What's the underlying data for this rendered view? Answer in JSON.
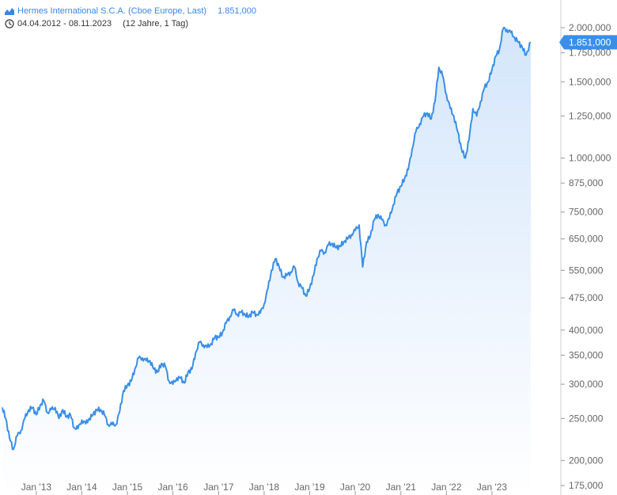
{
  "legend": {
    "instrument": "Hermes International S.C.A. (Cboe Europe, Last)",
    "last_value": "1.851,000",
    "date_range": "04.04.2012 - 08.11.2023",
    "period": "(12 Jahre, 1 Tag)",
    "icon": "area-chart-icon",
    "period_icon": "clock-icon"
  },
  "colors": {
    "line": "#3a8ee8",
    "area_top": "#d6e8fb",
    "price_tag": "#3a8ee8",
    "axis": "#cccccc",
    "label": "#666666"
  },
  "chart_data": {
    "type": "area",
    "title": "",
    "xlabel": "",
    "ylabel": "",
    "y_scale": "log",
    "ylim": [
      170,
      2100
    ],
    "xlim": [
      "2012-04-04",
      "2023-11-08"
    ],
    "y_ticks": [
      200,
      250,
      300,
      350,
      400,
      475,
      550,
      650,
      750,
      875,
      1000,
      1250,
      1500,
      1750,
      2000
    ],
    "y_tick_labels": [
      "200,000",
      "250,000",
      "300,000",
      "350,000",
      "400,000",
      "475,000",
      "550,000",
      "650,000",
      "750,000",
      "875,000",
      "1.000,000",
      "1.250,000",
      "1.500,000",
      "1.750,000",
      "2.000,000"
    ],
    "bottom_tick_label": "175,000",
    "x_ticks": [
      "2013-01-01",
      "2014-01-01",
      "2015-01-01",
      "2016-01-01",
      "2017-01-01",
      "2018-01-01",
      "2019-01-01",
      "2020-01-01",
      "2021-01-01",
      "2022-01-01",
      "2023-01-01"
    ],
    "x_tick_labels": [
      "Jan '13",
      "Jan '14",
      "Jan '15",
      "Jan '16",
      "Jan '17",
      "Jan '18",
      "Jan '19",
      "Jan '20",
      "Jan '21",
      "Jan '22",
      "Jan '23"
    ],
    "last_price_label": "1.851,000",
    "series": [
      {
        "values": [
          [
            "2012-04-04",
            265
          ],
          [
            "2012-05-01",
            250
          ],
          [
            "2012-06-01",
            225
          ],
          [
            "2012-07-01",
            212
          ],
          [
            "2012-08-01",
            228
          ],
          [
            "2012-09-01",
            235
          ],
          [
            "2012-10-01",
            250
          ],
          [
            "2012-11-01",
            262
          ],
          [
            "2012-12-01",
            265
          ],
          [
            "2013-01-01",
            255
          ],
          [
            "2013-02-01",
            268
          ],
          [
            "2013-03-01",
            275
          ],
          [
            "2013-04-01",
            258
          ],
          [
            "2013-05-01",
            262
          ],
          [
            "2013-06-01",
            265
          ],
          [
            "2013-07-01",
            250
          ],
          [
            "2013-08-01",
            262
          ],
          [
            "2013-09-01",
            252
          ],
          [
            "2013-10-01",
            255
          ],
          [
            "2013-11-01",
            238
          ],
          [
            "2013-12-01",
            237
          ],
          [
            "2014-01-01",
            248
          ],
          [
            "2014-02-01",
            243
          ],
          [
            "2014-03-01",
            250
          ],
          [
            "2014-04-01",
            255
          ],
          [
            "2014-05-01",
            262
          ],
          [
            "2014-06-01",
            262
          ],
          [
            "2014-07-01",
            255
          ],
          [
            "2014-08-01",
            242
          ],
          [
            "2014-09-01",
            242
          ],
          [
            "2014-10-01",
            242
          ],
          [
            "2014-11-01",
            260
          ],
          [
            "2014-12-01",
            290
          ],
          [
            "2015-01-01",
            298
          ],
          [
            "2015-02-01",
            305
          ],
          [
            "2015-03-01",
            325
          ],
          [
            "2015-04-01",
            345
          ],
          [
            "2015-05-01",
            345
          ],
          [
            "2015-06-01",
            340
          ],
          [
            "2015-07-01",
            340
          ],
          [
            "2015-08-01",
            325
          ],
          [
            "2015-09-01",
            320
          ],
          [
            "2015-10-01",
            335
          ],
          [
            "2015-11-01",
            330
          ],
          [
            "2015-12-01",
            305
          ],
          [
            "2016-01-01",
            300
          ],
          [
            "2016-02-01",
            310
          ],
          [
            "2016-03-01",
            310
          ],
          [
            "2016-04-01",
            302
          ],
          [
            "2016-05-01",
            320
          ],
          [
            "2016-06-01",
            325
          ],
          [
            "2016-07-01",
            355
          ],
          [
            "2016-08-01",
            375
          ],
          [
            "2016-09-01",
            370
          ],
          [
            "2016-10-01",
            365
          ],
          [
            "2016-11-01",
            372
          ],
          [
            "2016-12-01",
            385
          ],
          [
            "2017-01-01",
            385
          ],
          [
            "2017-02-01",
            395
          ],
          [
            "2017-03-01",
            415
          ],
          [
            "2017-04-01",
            430
          ],
          [
            "2017-05-01",
            445
          ],
          [
            "2017-06-01",
            435
          ],
          [
            "2017-07-01",
            440
          ],
          [
            "2017-08-01",
            435
          ],
          [
            "2017-09-01",
            430
          ],
          [
            "2017-10-01",
            440
          ],
          [
            "2017-11-01",
            435
          ],
          [
            "2017-12-01",
            438
          ],
          [
            "2018-01-01",
            460
          ],
          [
            "2018-02-01",
            500
          ],
          [
            "2018-03-01",
            550
          ],
          [
            "2018-04-01",
            585
          ],
          [
            "2018-05-01",
            560
          ],
          [
            "2018-06-01",
            530
          ],
          [
            "2018-07-01",
            535
          ],
          [
            "2018-08-01",
            545
          ],
          [
            "2018-09-01",
            560
          ],
          [
            "2018-10-01",
            515
          ],
          [
            "2018-11-01",
            500
          ],
          [
            "2018-12-01",
            480
          ],
          [
            "2019-01-01",
            500
          ],
          [
            "2019-02-01",
            535
          ],
          [
            "2019-03-01",
            585
          ],
          [
            "2019-04-01",
            610
          ],
          [
            "2019-05-01",
            605
          ],
          [
            "2019-06-01",
            630
          ],
          [
            "2019-07-01",
            635
          ],
          [
            "2019-08-01",
            620
          ],
          [
            "2019-09-01",
            625
          ],
          [
            "2019-10-01",
            640
          ],
          [
            "2019-11-01",
            650
          ],
          [
            "2019-12-01",
            665
          ],
          [
            "2020-01-01",
            680
          ],
          [
            "2020-02-01",
            700
          ],
          [
            "2020-03-01",
            560
          ],
          [
            "2020-04-01",
            640
          ],
          [
            "2020-05-01",
            660
          ],
          [
            "2020-06-01",
            720
          ],
          [
            "2020-07-01",
            740
          ],
          [
            "2020-08-01",
            720
          ],
          [
            "2020-09-01",
            700
          ],
          [
            "2020-10-01",
            725
          ],
          [
            "2020-11-01",
            780
          ],
          [
            "2020-12-01",
            830
          ],
          [
            "2021-01-01",
            860
          ],
          [
            "2021-02-01",
            900
          ],
          [
            "2021-03-01",
            940
          ],
          [
            "2021-04-01",
            1050
          ],
          [
            "2021-05-01",
            1150
          ],
          [
            "2021-06-01",
            1200
          ],
          [
            "2021-07-01",
            1250
          ],
          [
            "2021-08-01",
            1270
          ],
          [
            "2021-09-01",
            1230
          ],
          [
            "2021-10-01",
            1350
          ],
          [
            "2021-11-01",
            1620
          ],
          [
            "2021-12-01",
            1550
          ],
          [
            "2022-01-01",
            1400
          ],
          [
            "2022-02-01",
            1300
          ],
          [
            "2022-03-01",
            1250
          ],
          [
            "2022-04-01",
            1150
          ],
          [
            "2022-05-01",
            1050
          ],
          [
            "2022-06-01",
            1000
          ],
          [
            "2022-07-01",
            1100
          ],
          [
            "2022-08-01",
            1300
          ],
          [
            "2022-09-01",
            1250
          ],
          [
            "2022-10-01",
            1350
          ],
          [
            "2022-11-01",
            1450
          ],
          [
            "2022-12-01",
            1500
          ],
          [
            "2023-01-01",
            1600
          ],
          [
            "2023-02-01",
            1720
          ],
          [
            "2023-03-01",
            1780
          ],
          [
            "2023-04-01",
            1990
          ],
          [
            "2023-05-01",
            1980
          ],
          [
            "2023-06-01",
            1950
          ],
          [
            "2023-07-01",
            1900
          ],
          [
            "2023-08-01",
            1850
          ],
          [
            "2023-09-01",
            1800
          ],
          [
            "2023-10-01",
            1730
          ],
          [
            "2023-11-08",
            1851
          ]
        ]
      }
    ]
  }
}
